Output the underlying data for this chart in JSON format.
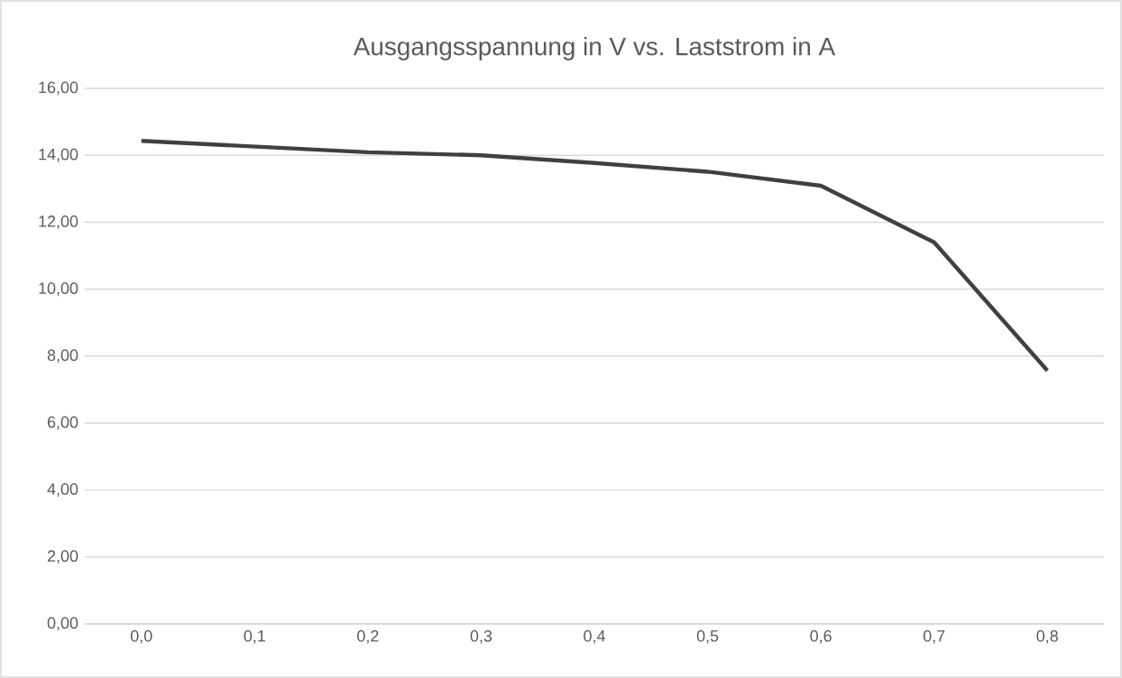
{
  "chart_data": {
    "type": "line",
    "title": "Ausgangsspannung in V vs. Laststrom in A",
    "categories": [
      "0,0",
      "0,1",
      "0,2",
      "0,3",
      "0,4",
      "0,5",
      "0,6",
      "0,7",
      "0,8"
    ],
    "values": [
      14.43,
      14.26,
      14.09,
      14.0,
      13.77,
      13.51,
      13.09,
      11.4,
      7.57
    ],
    "color": "#404040",
    "ylim": [
      0,
      16
    ],
    "yticks": [
      {
        "value": 0,
        "label": "0,00"
      },
      {
        "value": 2,
        "label": "2,00"
      },
      {
        "value": 4,
        "label": "4,00"
      },
      {
        "value": 6,
        "label": "6,00"
      },
      {
        "value": 8,
        "label": "8,00"
      },
      {
        "value": 10,
        "label": "10,00"
      },
      {
        "value": 12,
        "label": "12,00"
      },
      {
        "value": 14,
        "label": "14,00"
      },
      {
        "value": 16,
        "label": "16,00"
      }
    ],
    "grid": "y",
    "marker": "none",
    "line_style": "solid"
  }
}
